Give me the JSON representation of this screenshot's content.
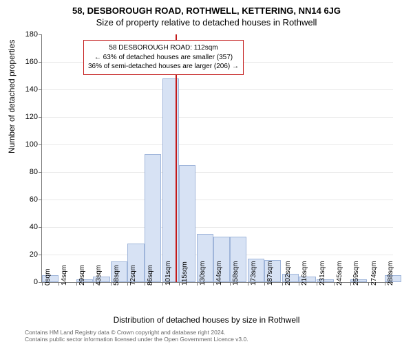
{
  "titles": {
    "line1": "58, DESBOROUGH ROAD, ROTHWELL, KETTERING, NN14 6JG",
    "line2": "Size of property relative to detached houses in Rothwell"
  },
  "axes": {
    "ylabel": "Number of detached properties",
    "xlabel": "Distribution of detached houses by size in Rothwell",
    "ylim": [
      0,
      180
    ],
    "ytick_step": 20,
    "xticks_values": [
      0,
      14,
      29,
      43,
      58,
      72,
      86,
      101,
      115,
      130,
      144,
      158,
      173,
      187,
      202,
      216,
      231,
      245,
      259,
      274,
      288
    ],
    "xticks_labels": [
      "0sqm",
      "14sqm",
      "29sqm",
      "43sqm",
      "58sqm",
      "72sqm",
      "86sqm",
      "101sqm",
      "115sqm",
      "130sqm",
      "144sqm",
      "158sqm",
      "173sqm",
      "187sqm",
      "202sqm",
      "216sqm",
      "231sqm",
      "245sqm",
      "259sqm",
      "274sqm",
      "288sqm"
    ]
  },
  "histogram": {
    "xmax": 295,
    "bar_width_sqm": 14,
    "bins": [
      {
        "x": 0,
        "h": 5
      },
      {
        "x": 29,
        "h": 2
      },
      {
        "x": 43,
        "h": 4
      },
      {
        "x": 58,
        "h": 15
      },
      {
        "x": 72,
        "h": 28
      },
      {
        "x": 86,
        "h": 93
      },
      {
        "x": 101,
        "h": 148
      },
      {
        "x": 115,
        "h": 85
      },
      {
        "x": 130,
        "h": 35
      },
      {
        "x": 144,
        "h": 33
      },
      {
        "x": 158,
        "h": 33
      },
      {
        "x": 173,
        "h": 17
      },
      {
        "x": 187,
        "h": 16
      },
      {
        "x": 202,
        "h": 6
      },
      {
        "x": 216,
        "h": 4
      },
      {
        "x": 231,
        "h": 2
      },
      {
        "x": 259,
        "h": 2
      },
      {
        "x": 288,
        "h": 5
      }
    ],
    "bar_fill": "#d7e2f4",
    "bar_border": "#9fb5da"
  },
  "marker": {
    "color": "#c31a1a",
    "x": 112,
    "box": {
      "line1": "58 DESBOROUGH ROAD: 112sqm",
      "line2": "← 63% of detached houses are smaller (357)",
      "line3": "36% of semi-detached houses are larger (206) →"
    }
  },
  "colors": {
    "bg": "#ffffff",
    "grid": "#e8e8e8",
    "axis": "#777777"
  },
  "footer": {
    "line1": "Contains HM Land Registry data © Crown copyright and database right 2024.",
    "line2": "Contains public sector information licensed under the Open Government Licence v3.0."
  }
}
